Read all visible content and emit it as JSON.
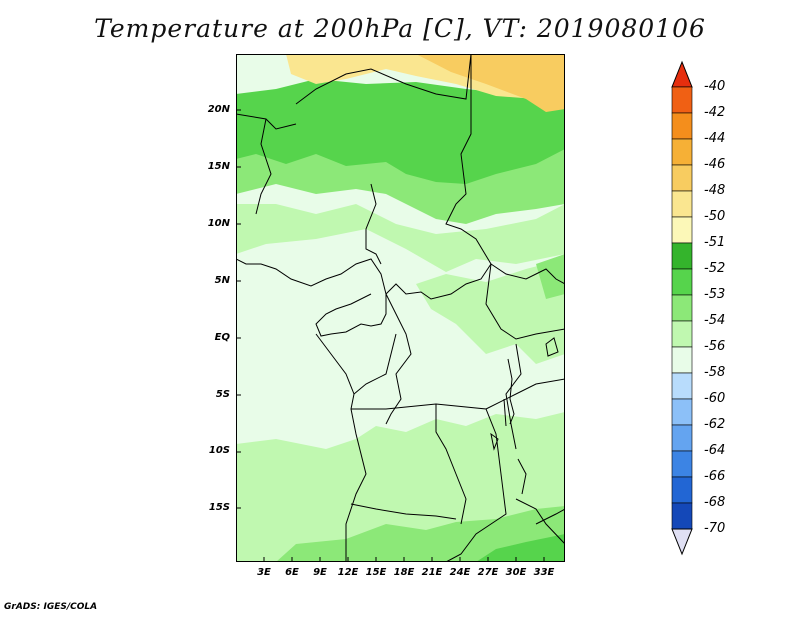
{
  "title": "Temperature at 200hPa [C], VT: 2019080106",
  "footer": "GrADS: IGES/COLA",
  "latitude_labels": [
    "20N",
    "15N",
    "10N",
    "5N",
    "EQ",
    "5S",
    "10S",
    "15S"
  ],
  "longitude_labels": [
    "3E",
    "6E",
    "9E",
    "12E",
    "15E",
    "18E",
    "21E",
    "24E",
    "27E",
    "30E",
    "33E"
  ],
  "colorbar": {
    "levels": [
      "-40",
      "-42",
      "-44",
      "-46",
      "-48",
      "-50",
      "-51",
      "-52",
      "-53",
      "-54",
      "-56",
      "-58",
      "-60",
      "-62",
      "-64",
      "-66",
      "-68",
      "-70"
    ],
    "colors": [
      "#e0f6ff",
      "#a4d4fc",
      "#7cb8f8",
      "#5296ec",
      "#3076e0",
      "#1c56cc",
      "#0e3aa8",
      "#061470",
      "#e8fce8",
      "#c0f8b0",
      "#8ce878",
      "#56d44c",
      "#34b42c",
      "#fae690",
      "#f8cc60",
      "#f6b036",
      "#f48e1c",
      "#f06014",
      "#e62e0e"
    ],
    "top_color": "#e62e0e",
    "bottom_color": "#e0e0f4"
  },
  "palette": {
    "c54": "#e8fce8",
    "c53": "#c0f8b0",
    "c52": "#8ce878",
    "c51": "#56d44c",
    "c50": "#fae690",
    "c48": "#f8cc60"
  }
}
